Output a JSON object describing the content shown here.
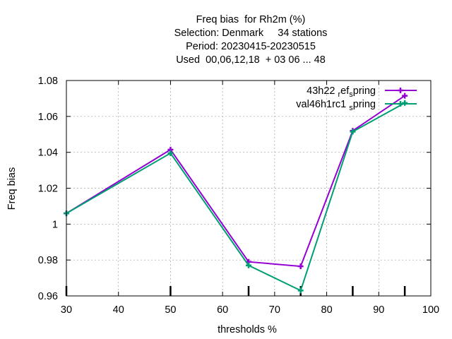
{
  "chart_data": {
    "type": "line",
    "title_lines": [
      "Freq bias  for Rh2m (%)",
      "Selection: Denmark     34 stations",
      "Period: 20230415-20230515",
      "Used  00,06,12,18  + 03 06 ... 48"
    ],
    "xlabel": "thresholds %",
    "ylabel": "Freq bias",
    "xlim": [
      30,
      100
    ],
    "ylim": [
      0.96,
      1.08
    ],
    "xticks": [
      30,
      40,
      50,
      60,
      70,
      80,
      90,
      100
    ],
    "xtick_labels": [
      "30",
      "40",
      "50",
      "60",
      "70",
      "80",
      "90",
      "100"
    ],
    "yticks": [
      0.96,
      0.98,
      1.0,
      1.02,
      1.04,
      1.06,
      1.08
    ],
    "ytick_labels": [
      "0.96",
      "0.98",
      "1",
      "1.02",
      "1.04",
      "1.06",
      "1.08"
    ],
    "grid": true,
    "legend_position": "top-right",
    "sample_markers_x": [
      30,
      50,
      65,
      75,
      85,
      95
    ],
    "series": [
      {
        "name": "43h22_ref_spring",
        "legend_parts": [
          "43h22 ",
          "r",
          "ef",
          "s",
          "pring"
        ],
        "color": "#9400d3",
        "x": [
          30,
          50,
          65,
          75,
          85,
          95
        ],
        "y": [
          1.006,
          1.0415,
          0.979,
          0.9765,
          1.052,
          1.0715
        ]
      },
      {
        "name": "val46h1rc1_spring",
        "legend_parts": [
          "val46h1rc1 ",
          "s",
          "pring"
        ],
        "color": "#009e73",
        "x": [
          30,
          50,
          65,
          75,
          85,
          95
        ],
        "y": [
          1.006,
          1.0395,
          0.977,
          0.963,
          1.0515,
          1.0675
        ]
      }
    ]
  }
}
